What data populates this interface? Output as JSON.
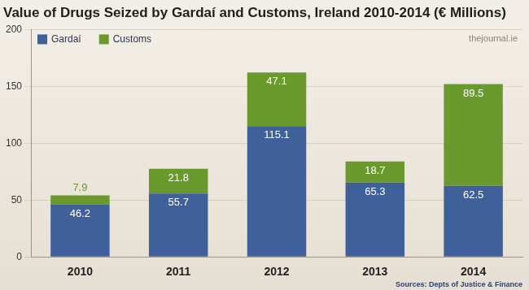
{
  "chart_data": {
    "type": "bar",
    "title": "Value of Drugs Seized by Gardaí and Customs, Ireland 2010-2014 (€ Millions)",
    "annotations": [
      "thejournal.ie",
      "Sources: Depts of Justice & Finance"
    ],
    "categories": [
      "2010",
      "2011",
      "2012",
      "2013",
      "2014"
    ],
    "series": [
      {
        "name": "Gardaí",
        "color": "#40609a",
        "values": [
          46.2,
          55.7,
          115.1,
          65.3,
          62.5
        ]
      },
      {
        "name": "Customs",
        "color": "#6a9a2e",
        "values": [
          7.9,
          21.8,
          47.1,
          18.7,
          89.5
        ]
      }
    ],
    "ylim": [
      0,
      200
    ],
    "yticks": [
      0,
      50,
      100,
      150,
      200
    ],
    "stacked": true,
    "data_labels": true,
    "legend": "top-left",
    "grid": true
  }
}
